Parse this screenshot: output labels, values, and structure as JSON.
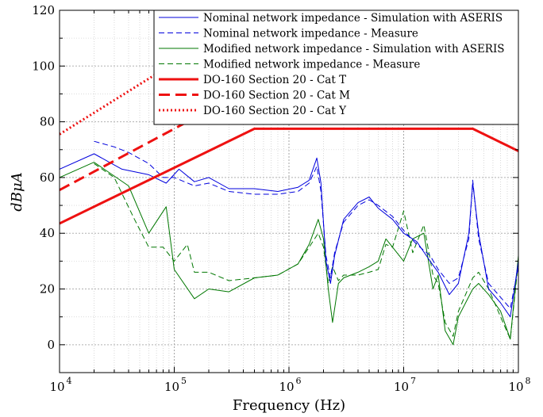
{
  "chart_data": {
    "type": "line",
    "xlabel": "Frequency (Hz)",
    "ylabel": "dBμA",
    "xscale": "log",
    "xlim": [
      10000,
      100000000
    ],
    "ylim": [
      -10,
      120
    ],
    "grid": true,
    "legend_position": "top-right",
    "x_ticks": [
      {
        "value": 10000,
        "base": "10",
        "exp": "4"
      },
      {
        "value": 100000,
        "base": "10",
        "exp": "5"
      },
      {
        "value": 1000000,
        "base": "10",
        "exp": "6"
      },
      {
        "value": 10000000,
        "base": "10",
        "exp": "7"
      },
      {
        "value": 100000000,
        "base": "10",
        "exp": "8"
      }
    ],
    "y_ticks": [
      0,
      20,
      40,
      60,
      80,
      100,
      120
    ],
    "series": [
      {
        "name": "Nominal network impedance - Simulation with ASERIS",
        "color": "#0000dd",
        "dash": "solid",
        "width": 1,
        "x": [
          10000,
          20000,
          35000,
          60000,
          85000,
          110000,
          150000,
          200000,
          300000,
          500000,
          800000,
          1200000,
          1500000,
          1750000,
          1900000,
          2100000,
          2300000,
          2500000,
          3000000,
          4000000,
          5000000,
          6000000,
          8000000,
          10000000,
          13000000,
          17000000,
          20000000,
          25000000,
          30000000,
          37000000,
          40000000,
          45000000,
          55000000,
          70000000,
          85000000,
          100000000
        ],
        "y": [
          63,
          68.5,
          63,
          61,
          58,
          63,
          58.5,
          60,
          56,
          56,
          55,
          56.5,
          59,
          67,
          58,
          30,
          22,
          32,
          45,
          51,
          53,
          49,
          45,
          40,
          37,
          30,
          26,
          18,
          22,
          40,
          58,
          40,
          20,
          15,
          10,
          30
        ]
      },
      {
        "name": "Nominal network impedance - Measure",
        "color": "#0000dd",
        "dash": "dashed",
        "width": 1,
        "x": [
          20000,
          30000,
          40000,
          60000,
          80000,
          100000,
          150000,
          200000,
          300000,
          500000,
          800000,
          1200000,
          1500000,
          1750000,
          1900000,
          2100000,
          2300000,
          2500000,
          3000000,
          4000000,
          5000000,
          6000000,
          8000000,
          10000000,
          13000000,
          17000000,
          20000000,
          25000000,
          30000000,
          37000000,
          40000000,
          45000000,
          55000000,
          70000000,
          85000000,
          100000000
        ],
        "y": [
          73,
          71,
          69,
          65,
          60,
          60,
          57,
          58,
          55,
          54,
          54,
          55,
          58,
          64,
          55,
          32,
          24,
          33,
          44,
          50,
          52,
          50,
          46,
          41,
          36,
          32,
          27,
          22,
          24,
          38,
          59,
          38,
          22,
          17,
          13,
          28
        ]
      },
      {
        "name": "Modified network impedance - Simulation with ASERIS",
        "color": "#007700",
        "dash": "solid",
        "width": 1,
        "x": [
          10000,
          20000,
          40000,
          60000,
          85000,
          100000,
          150000,
          200000,
          300000,
          500000,
          800000,
          1200000,
          1500000,
          1800000,
          2000000,
          2200000,
          2400000,
          2700000,
          3000000,
          4000000,
          5000000,
          6000000,
          7000000,
          8000000,
          10000000,
          12000000,
          15000000,
          18000000,
          20000000,
          23000000,
          27000000,
          30000000,
          40000000,
          45000000,
          55000000,
          70000000,
          85000000,
          100000000
        ],
        "y": [
          60,
          65.5,
          57,
          40,
          49.5,
          27,
          16.5,
          20,
          19,
          24,
          25,
          29,
          36,
          45,
          38,
          20,
          8,
          22,
          24,
          26,
          28,
          30,
          38,
          35,
          30,
          38,
          40,
          20,
          25,
          5,
          0,
          10,
          20,
          22,
          18,
          12,
          2,
          32
        ]
      },
      {
        "name": "Modified network impedance - Measure",
        "color": "#007700",
        "dash": "dashed",
        "width": 1,
        "x": [
          20000,
          30000,
          45000,
          60000,
          80000,
          100000,
          130000,
          150000,
          200000,
          300000,
          500000,
          800000,
          1200000,
          1500000,
          1800000,
          2000000,
          2200000,
          2400000,
          2700000,
          3000000,
          4000000,
          5000000,
          6000000,
          7000000,
          8000000,
          10000000,
          12000000,
          15000000,
          18000000,
          20000000,
          23000000,
          27000000,
          30000000,
          40000000,
          45000000,
          55000000,
          70000000,
          85000000,
          100000000
        ],
        "y": [
          65,
          60,
          45,
          35,
          35,
          30,
          36,
          26,
          26,
          23,
          24,
          25,
          29,
          35,
          40,
          35,
          22,
          28,
          23,
          25,
          25,
          26,
          27,
          36,
          35,
          48,
          33,
          43,
          25,
          22,
          8,
          3,
          12,
          24,
          26,
          20,
          10,
          2,
          30
        ]
      },
      {
        "name": "DO-160 Section 20 - Cat T",
        "color": "#ee1111",
        "dash": "solid",
        "width": 3,
        "x": [
          10000,
          500000,
          40000000,
          100000000
        ],
        "y": [
          43.5,
          77.5,
          77.5,
          69.5
        ]
      },
      {
        "name": "DO-160 Section 20 - Cat M",
        "color": "#ee1111",
        "dash": "dashed",
        "width": 3,
        "x": [
          10000,
          130000
        ],
        "y": [
          55.5,
          80
        ]
      },
      {
        "name": "DO-160 Section 20 - Cat Y",
        "color": "#ee1111",
        "dash": "dotted",
        "width": 3,
        "x": [
          10000,
          90000
        ],
        "y": [
          75.5,
          100
        ]
      }
    ]
  }
}
